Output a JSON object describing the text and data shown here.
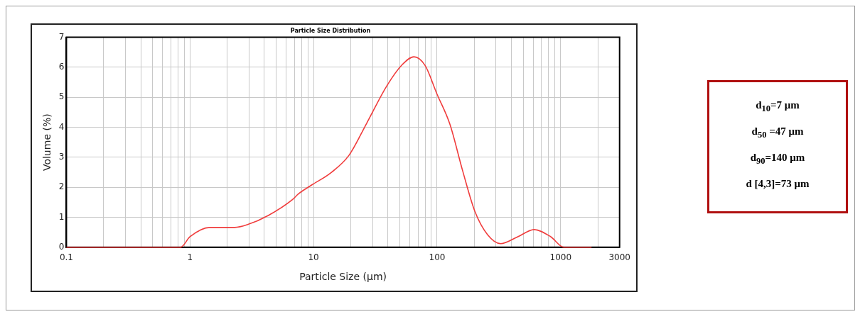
{
  "chart_data": {
    "type": "line",
    "title": "Particle Size Distribution",
    "xlabel": "Particle Size (μm)",
    "ylabel": "Volume (%)",
    "log": "x",
    "grid": true,
    "marker": "none",
    "line_style": "solid",
    "xlim": [
      0.1,
      3000
    ],
    "xticks": [
      0.1,
      {
        "value": 0.2,
        "label": null
      },
      {
        "value": 0.3,
        "label": null
      },
      {
        "value": 0.4,
        "label": null
      },
      {
        "value": 0.5,
        "label": null
      },
      {
        "value": 0.6,
        "label": null
      },
      {
        "value": 0.7,
        "label": null
      },
      {
        "value": 0.8,
        "label": null
      },
      {
        "value": 0.9,
        "label": null
      },
      1,
      {
        "value": 2,
        "label": null
      },
      {
        "value": 3,
        "label": null
      },
      {
        "value": 4,
        "label": null
      },
      {
        "value": 5,
        "label": null
      },
      {
        "value": 6,
        "label": null
      },
      {
        "value": 7,
        "label": null
      },
      {
        "value": 8,
        "label": null
      },
      {
        "value": 9,
        "label": null
      },
      10,
      {
        "value": 20,
        "label": null
      },
      {
        "value": 30,
        "label": null
      },
      {
        "value": 40,
        "label": null
      },
      {
        "value": 50,
        "label": null
      },
      {
        "value": 60,
        "label": null
      },
      {
        "value": 70,
        "label": null
      },
      {
        "value": 80,
        "label": null
      },
      {
        "value": 90,
        "label": null
      },
      100,
      {
        "value": 200,
        "label": null
      },
      {
        "value": 300,
        "label": null
      },
      {
        "value": 400,
        "label": null
      },
      {
        "value": 500,
        "label": null
      },
      {
        "value": 600,
        "label": null
      },
      {
        "value": 700,
        "label": null
      },
      {
        "value": 800,
        "label": null
      },
      {
        "value": 900,
        "label": null
      },
      1000,
      {
        "value": 2000,
        "label": null
      },
      3000
    ],
    "ylim": [
      0,
      7
    ],
    "yticks": [
      0,
      1,
      2,
      3,
      4,
      5,
      6,
      7
    ],
    "series": [
      {
        "color": "#f03c3c",
        "x": [
          0.1,
          0.5,
          0.84,
          1,
          1.45,
          2.3,
          2.9,
          4.3,
          6.8,
          7.5,
          9.7,
          13.8,
          19.4,
          26.9,
          39.2,
          52,
          65,
          80,
          100,
          127,
          161,
          202,
          256,
          327,
          450,
          609,
          832,
          1060,
          1780
        ],
        "values": [
          0,
          0,
          0,
          0.35,
          0.66,
          0.66,
          0.75,
          1.06,
          1.6,
          1.77,
          2.08,
          2.48,
          3.07,
          4.13,
          5.38,
          6.08,
          6.35,
          6.06,
          5.1,
          4.1,
          2.55,
          1.2,
          0.42,
          0.12,
          0.35,
          0.59,
          0.35,
          0,
          0
        ]
      }
    ],
    "annotations": [
      "d$_{10}$=7 μm",
      "d$_{50}$ =47 μm",
      "d$_{90}$=140 μm",
      "d [4,3]=73 μm"
    ]
  }
}
